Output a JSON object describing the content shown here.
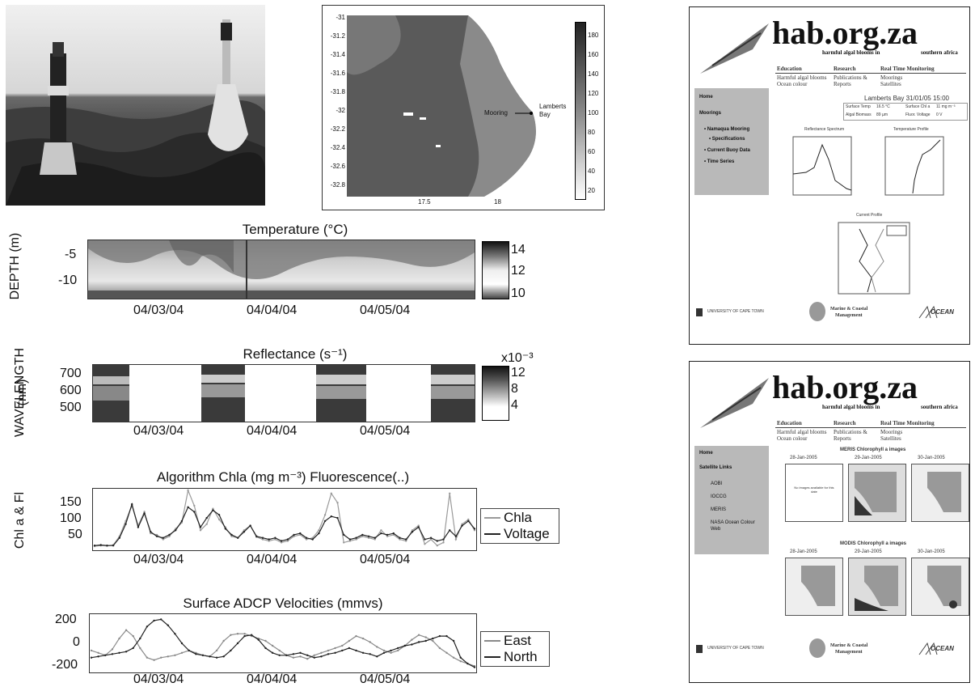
{
  "buoy_photo": {
    "alt": "buoys"
  },
  "map": {
    "y_ticks": [
      "-31",
      "-31.2",
      "-31.4",
      "-31.6",
      "-31.8",
      "-32",
      "-32.2",
      "-32.4",
      "-32.6",
      "-32.8"
    ],
    "x_ticks": [
      "17.5",
      "18"
    ],
    "colorbar_ticks": [
      "180",
      "160",
      "140",
      "120",
      "100",
      "80",
      "60",
      "40",
      "20"
    ],
    "mooring_label": "Mooring",
    "place_label_1": "Lamberts",
    "place_label_2": "Bay"
  },
  "temperature": {
    "title": "Temperature (°C)",
    "ylabel": "DEPTH (m)",
    "y_ticks": [
      "-5",
      "-10"
    ],
    "colorbar_ticks": [
      "14",
      "12",
      "10"
    ],
    "x_ticks": [
      "04/03/04",
      "04/04/04",
      "04/05/04"
    ]
  },
  "reflectance": {
    "title": "Reflectance (s⁻¹)",
    "ylabel_1": "WAVELENGTH",
    "ylabel_2": "(nm)",
    "y_ticks": [
      "700",
      "600",
      "500"
    ],
    "colorbar_exp": "x10⁻³",
    "colorbar_ticks": [
      "12",
      "8",
      "4"
    ],
    "x_ticks": [
      "04/03/04",
      "04/04/04",
      "04/05/04"
    ]
  },
  "chart_data": [
    {
      "type": "line",
      "title": "Algorithm Chla (mg m⁻³) Fluorescence(..)",
      "ylabel": "Chl a & Fl",
      "ylim": [
        0,
        190
      ],
      "y_ticks": [
        "150",
        "100",
        "50"
      ],
      "x_ticks": [
        "04/03/04",
        "04/04/04",
        "04/05/04"
      ],
      "legend": "right",
      "series": [
        {
          "name": "Chla",
          "color": "#9a9a9a",
          "values": [
            8,
            10,
            9,
            12,
            40,
            90,
            140,
            75,
            120,
            50,
            45,
            30,
            40,
            65,
            85,
            190,
            140,
            60,
            80,
            130,
            95,
            70,
            40,
            35,
            60,
            75,
            38,
            30,
            25,
            30,
            20,
            25,
            40,
            45,
            30,
            35,
            60,
            110,
            180,
            150,
            20,
            25,
            30,
            40,
            35,
            30,
            60,
            40,
            45,
            30,
            25,
            60,
            75,
            15,
            30,
            10,
            20,
            180,
            30,
            80,
            95,
            60
          ]
        },
        {
          "name": "Voltage",
          "color": "#222222",
          "values": [
            10,
            12,
            10,
            10,
            35,
            80,
            145,
            70,
            115,
            55,
            40,
            35,
            45,
            60,
            90,
            135,
            120,
            70,
            100,
            125,
            110,
            65,
            45,
            35,
            55,
            75,
            40,
            35,
            30,
            35,
            25,
            30,
            45,
            50,
            35,
            30,
            50,
            90,
            105,
            100,
            45,
            30,
            35,
            45,
            40,
            35,
            50,
            45,
            50,
            35,
            30,
            55,
            70,
            30,
            35,
            25,
            30,
            60,
            40,
            75,
            90,
            65
          ]
        }
      ]
    },
    {
      "type": "line",
      "title": "Surface ADCP Velocities (mmvs)",
      "ylim": [
        -230,
        230
      ],
      "y_ticks": [
        "200",
        "0",
        "-200"
      ],
      "x_ticks": [
        "04/03/04",
        "04/04/04",
        "04/05/04"
      ],
      "legend": "right",
      "series": [
        {
          "name": "East",
          "color": "#8a8a8a",
          "values": [
            -60,
            -80,
            -100,
            -50,
            40,
            110,
            60,
            -40,
            -120,
            -140,
            -120,
            -110,
            -100,
            -80,
            -60,
            -80,
            -100,
            -110,
            -60,
            20,
            70,
            80,
            80,
            60,
            40,
            20,
            -20,
            -60,
            -100,
            -120,
            -110,
            -130,
            -100,
            -80,
            -60,
            -40,
            -20,
            20,
            60,
            40,
            10,
            -30,
            -60,
            -80,
            -60,
            -20,
            30,
            70,
            50,
            20,
            -40,
            -80,
            -120,
            -150,
            -170,
            -190
          ]
        },
        {
          "name": "North",
          "color": "#222222",
          "values": [
            -120,
            -110,
            -100,
            -90,
            -80,
            -70,
            -40,
            40,
            140,
            190,
            200,
            150,
            80,
            0,
            -60,
            -90,
            -100,
            -110,
            -120,
            -110,
            -60,
            0,
            60,
            70,
            30,
            -40,
            -80,
            -100,
            -100,
            -90,
            -80,
            -100,
            -120,
            -110,
            -90,
            -80,
            -60,
            -40,
            -60,
            -80,
            -90,
            -110,
            -80,
            -60,
            -40,
            -20,
            -10,
            10,
            20,
            40,
            60,
            60,
            20,
            -120,
            -170,
            -200
          ]
        }
      ]
    }
  ],
  "site_top": {
    "logo": "hab.org.za",
    "tagline_1": "harmful algal blooms in",
    "tagline_2": "southern africa",
    "menu_heads": [
      "Education",
      "Research",
      "Real Time Monitoring"
    ],
    "menu_col1": [
      "Harmful algal blooms",
      "Ocean colour"
    ],
    "menu_col2": [
      "Publications &",
      "Reports"
    ],
    "menu_col3": [
      "Moorings",
      "Satellites"
    ],
    "nav": [
      "Home",
      "Moorings",
      "• Namaqua Mooring",
      "• Specifications",
      "• Current Buoy Data",
      "• Time Series"
    ],
    "station": "Lamberts Bay 31/01/05 15:00",
    "table": [
      "Surface Temp",
      "16.5 °C",
      "Surface Chl a",
      "11 mg m⁻³",
      "Algal Biomass",
      "89 µm",
      "Fluor. Voltage",
      "0 V"
    ],
    "plot1": "Reflectance Spectrum",
    "plot2": "Temperature Profile",
    "plot3": "Current Profile",
    "footer_1": "UNIVERSITY OF CAPE TOWN",
    "footer_2a": "Marine & Coastal",
    "footer_2b": "Management",
    "footer_3": "OCEAN"
  },
  "site_bottom": {
    "logo": "hab.org.za",
    "tagline_1": "harmful algal blooms in",
    "tagline_2": "southern africa",
    "menu_heads": [
      "Education",
      "Research",
      "Real Time Monitoring"
    ],
    "menu_col1": [
      "Harmful algal blooms",
      "Ocean colour"
    ],
    "menu_col2": [
      "Publications &",
      "Reports"
    ],
    "menu_col3": [
      "Moorings",
      "Satellites"
    ],
    "nav": [
      "Home",
      "Satellite Links",
      "AOBI",
      "IOCCG",
      "MERIS",
      "NASA Ocean Colour",
      "Web"
    ],
    "meris_title": "MERIS Chlorophyll a images",
    "modis_title": "MODIS Chlorophyll a images",
    "dates": [
      "28-Jan-2005",
      "29-Jan-2005",
      "30-Jan-2005"
    ],
    "no_image": "No images available for this date",
    "footer_1": "UNIVERSITY OF CAPE TOWN",
    "footer_2a": "Marine & Coastal",
    "footer_2b": "Management",
    "footer_3": "OCEAN"
  }
}
